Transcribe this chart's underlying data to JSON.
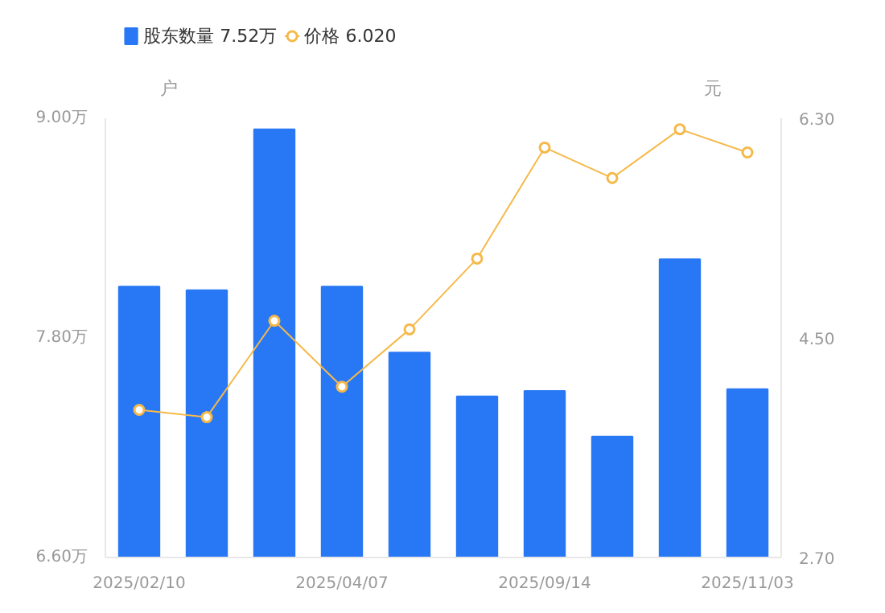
{
  "chart_data": {
    "type": "bar",
    "categories": [
      "2025/02/10",
      null,
      null,
      "2025/04/07",
      null,
      null,
      "2025/09/14",
      null,
      null,
      "2025/11/03"
    ],
    "ylabel": "户",
    "y2label": "元",
    "series": [
      {
        "name": "股东数量 7.52万",
        "color": "#2878f5",
        "values": [
          8.08,
          8.06,
          8.94,
          8.08,
          7.72,
          7.48,
          7.51,
          7.26,
          8.23,
          7.52
        ]
      },
      {
        "name": "价格 6.020",
        "type": "line",
        "axis": "y2",
        "color": "#f5b94a",
        "values": [
          3.91,
          3.85,
          4.64,
          4.1,
          4.57,
          5.15,
          6.06,
          5.81,
          6.21,
          6.02
        ]
      }
    ],
    "ylim": [
      6.6,
      9.0
    ],
    "yticks": [
      {
        "value": 6.6,
        "label": "6.60万"
      },
      {
        "value": 7.8,
        "label": "7.80万"
      },
      {
        "value": 9.0,
        "label": "9.00万"
      }
    ],
    "y2lim": [
      2.7,
      6.3
    ],
    "y2ticks": [
      {
        "value": 2.7,
        "label": "2.70"
      },
      {
        "value": 4.5,
        "label": "4.50"
      },
      {
        "value": 6.3,
        "label": "6.30"
      }
    ],
    "grid": false,
    "legend": "top left",
    "marker": "circle"
  }
}
